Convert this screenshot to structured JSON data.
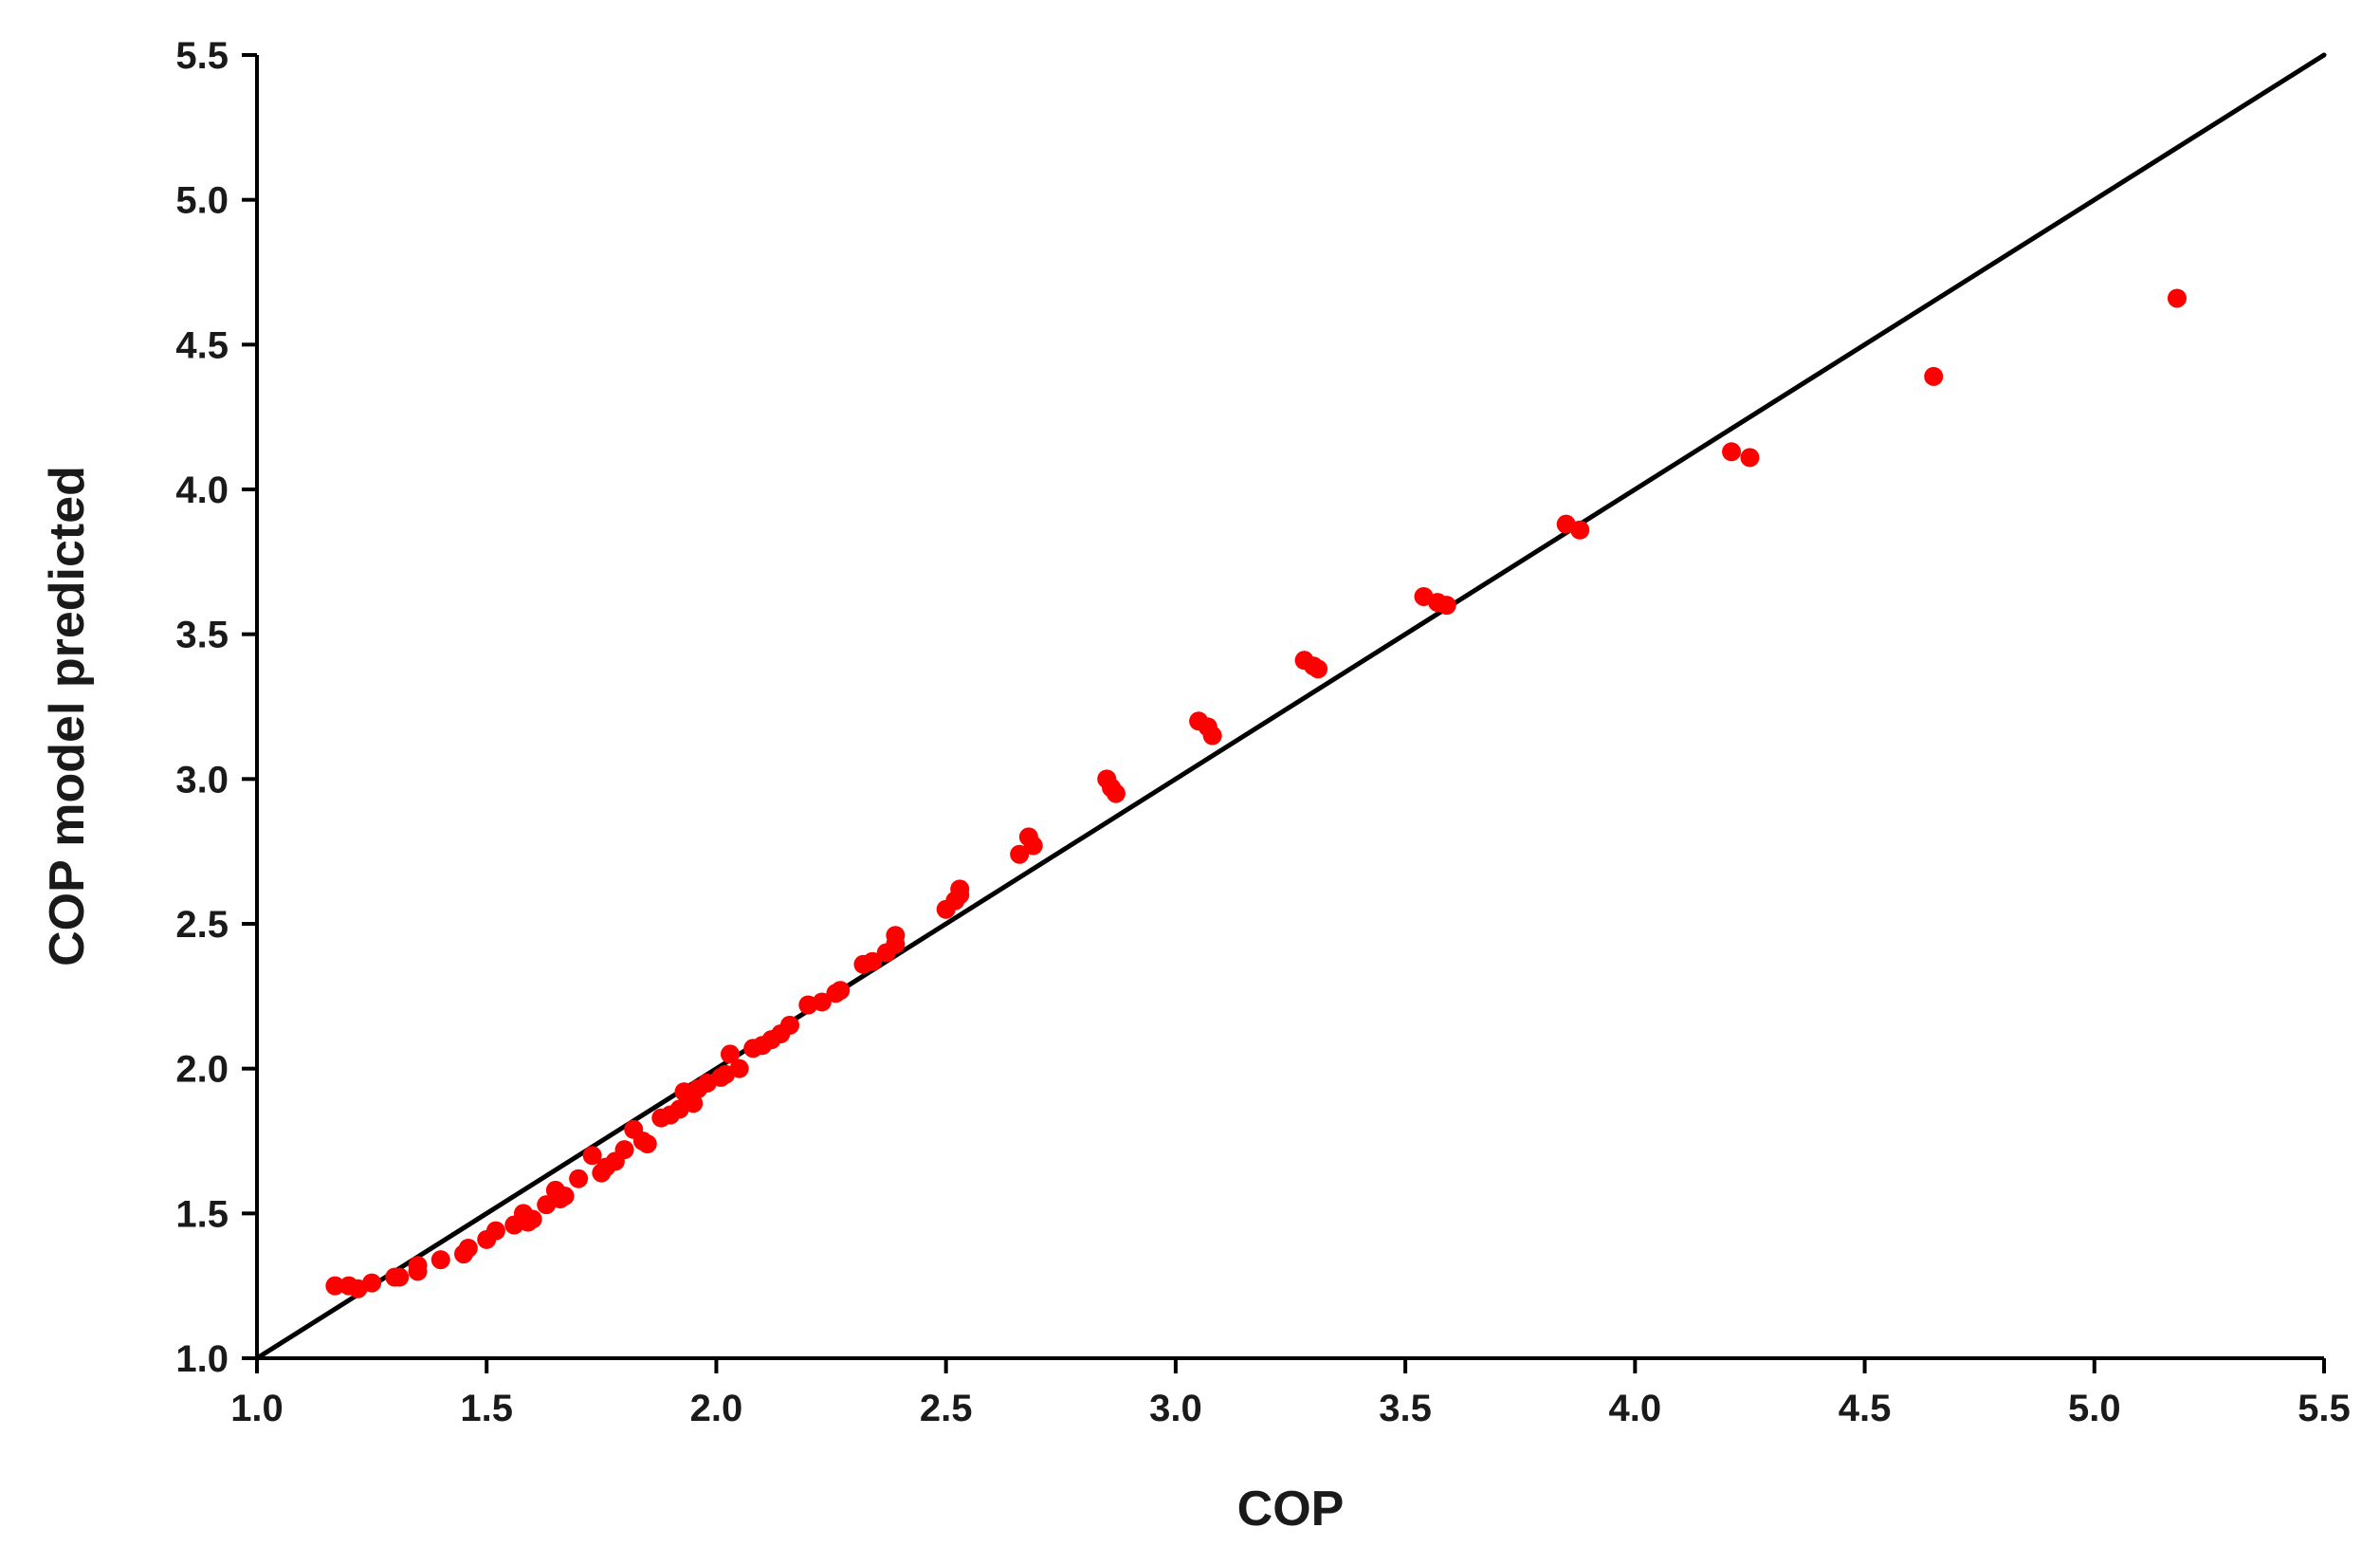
{
  "chart_data": {
    "type": "scatter",
    "xlabel": "COP",
    "ylabel": "COP model predicted",
    "xlim": [
      1.0,
      5.5
    ],
    "ylim": [
      1.0,
      5.5
    ],
    "xticks": [
      "1.0",
      "1.5",
      "2.0",
      "2.5",
      "3.0",
      "3.5",
      "4.0",
      "4.5",
      "5.0",
      "5.5"
    ],
    "yticks": [
      "1.0",
      "1.5",
      "2.0",
      "2.5",
      "3.0",
      "3.5",
      "4.0",
      "4.5",
      "5.0",
      "5.5"
    ],
    "grid": false,
    "reference_line": {
      "type": "y = x",
      "from": [
        1.0,
        1.0
      ],
      "to": [
        5.5,
        5.5
      ],
      "color": "#000000"
    },
    "point_color": "#ff0000",
    "points": [
      [
        1.17,
        1.25
      ],
      [
        1.2,
        1.25
      ],
      [
        1.22,
        1.24
      ],
      [
        1.25,
        1.26
      ],
      [
        1.3,
        1.28
      ],
      [
        1.31,
        1.28
      ],
      [
        1.35,
        1.32
      ],
      [
        1.35,
        1.3
      ],
      [
        1.4,
        1.34
      ],
      [
        1.45,
        1.36
      ],
      [
        1.46,
        1.38
      ],
      [
        1.5,
        1.41
      ],
      [
        1.52,
        1.44
      ],
      [
        1.56,
        1.46
      ],
      [
        1.58,
        1.5
      ],
      [
        1.59,
        1.47
      ],
      [
        1.6,
        1.48
      ],
      [
        1.63,
        1.53
      ],
      [
        1.65,
        1.58
      ],
      [
        1.66,
        1.55
      ],
      [
        1.67,
        1.56
      ],
      [
        1.7,
        1.62
      ],
      [
        1.73,
        1.7
      ],
      [
        1.75,
        1.64
      ],
      [
        1.76,
        1.66
      ],
      [
        1.78,
        1.68
      ],
      [
        1.8,
        1.72
      ],
      [
        1.82,
        1.79
      ],
      [
        1.84,
        1.75
      ],
      [
        1.85,
        1.74
      ],
      [
        1.88,
        1.83
      ],
      [
        1.9,
        1.84
      ],
      [
        1.92,
        1.86
      ],
      [
        1.93,
        1.92
      ],
      [
        1.95,
        1.88
      ],
      [
        1.96,
        1.93
      ],
      [
        1.98,
        1.95
      ],
      [
        2.01,
        1.97
      ],
      [
        2.02,
        1.98
      ],
      [
        2.03,
        2.05
      ],
      [
        2.05,
        2.0
      ],
      [
        2.08,
        2.07
      ],
      [
        2.1,
        2.08
      ],
      [
        2.12,
        2.1
      ],
      [
        2.14,
        2.12
      ],
      [
        2.16,
        2.15
      ],
      [
        2.2,
        2.22
      ],
      [
        2.23,
        2.23
      ],
      [
        2.26,
        2.26
      ],
      [
        2.27,
        2.27
      ],
      [
        2.32,
        2.36
      ],
      [
        2.34,
        2.37
      ],
      [
        2.37,
        2.4
      ],
      [
        2.39,
        2.43
      ],
      [
        2.39,
        2.46
      ],
      [
        2.5,
        2.55
      ],
      [
        2.52,
        2.58
      ],
      [
        2.53,
        2.62
      ],
      [
        2.53,
        2.6
      ],
      [
        2.66,
        2.74
      ],
      [
        2.68,
        2.8
      ],
      [
        2.69,
        2.77
      ],
      [
        2.85,
        3.0
      ],
      [
        2.86,
        2.97
      ],
      [
        2.87,
        2.95
      ],
      [
        3.05,
        3.2
      ],
      [
        3.07,
        3.18
      ],
      [
        3.08,
        3.15
      ],
      [
        3.28,
        3.41
      ],
      [
        3.3,
        3.39
      ],
      [
        3.31,
        3.38
      ],
      [
        3.54,
        3.63
      ],
      [
        3.57,
        3.61
      ],
      [
        3.59,
        3.6
      ],
      [
        3.85,
        3.88
      ],
      [
        3.88,
        3.86
      ],
      [
        4.21,
        4.13
      ],
      [
        4.25,
        4.11
      ],
      [
        4.65,
        4.39
      ],
      [
        5.18,
        4.66
      ]
    ]
  }
}
